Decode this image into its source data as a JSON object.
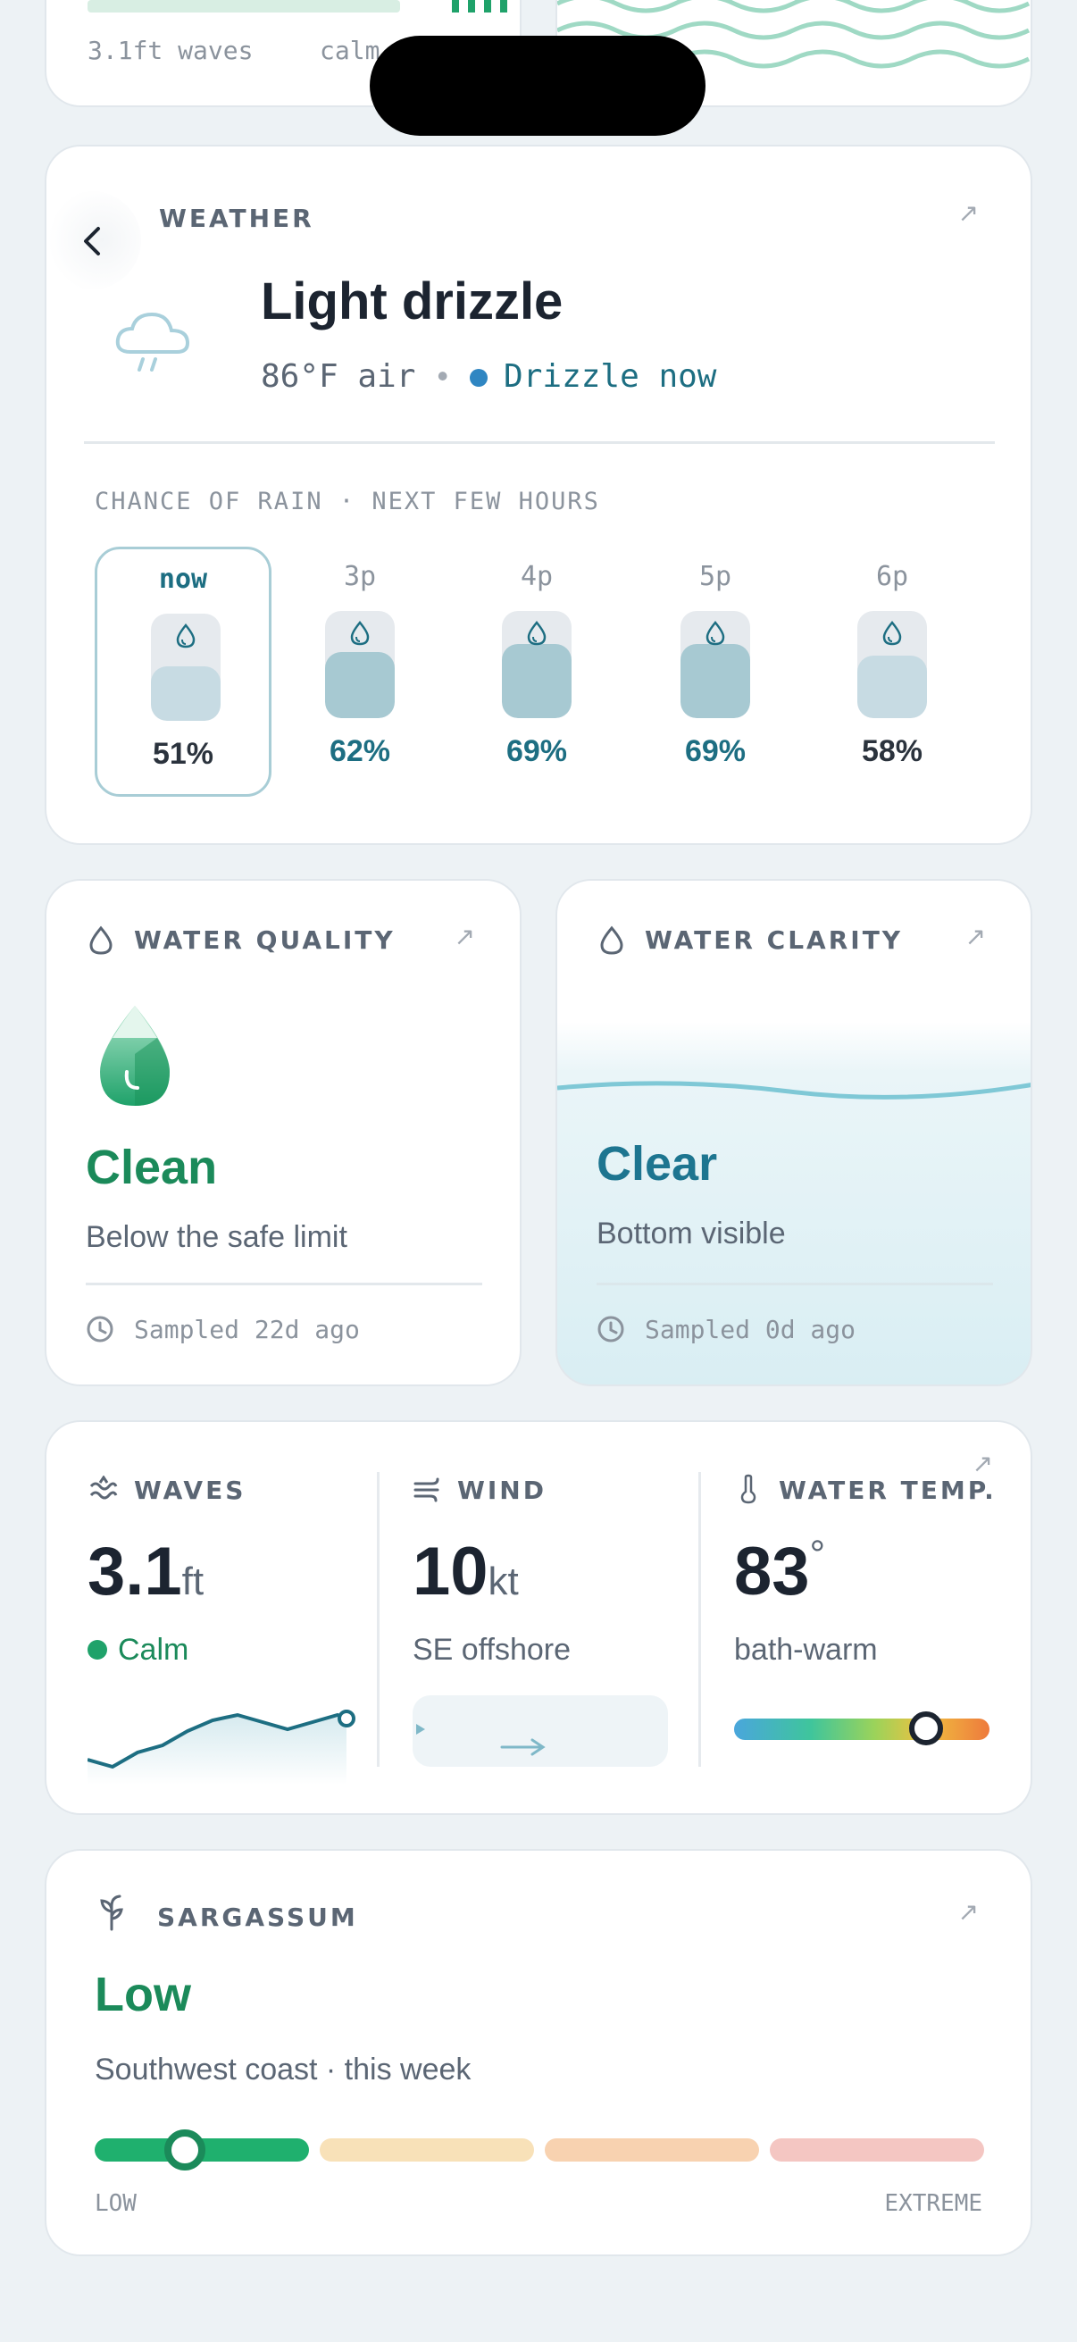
{
  "top_partial": {
    "left_caption_waves": "3.1ft waves",
    "left_caption_calm": "calm"
  },
  "weather": {
    "section_label": "WEATHER",
    "condition": "Light drizzle",
    "air_temp": "86°F air",
    "separator": "•",
    "status": "Drizzle now",
    "rain_heading": "CHANCE OF RAIN · NEXT FEW HOURS",
    "hours": [
      {
        "label": "now",
        "pct": "51%",
        "chance": 51
      },
      {
        "label": "3p",
        "pct": "62%",
        "chance": 62
      },
      {
        "label": "4p",
        "pct": "69%",
        "chance": 69
      },
      {
        "label": "5p",
        "pct": "69%",
        "chance": 69
      },
      {
        "label": "6p",
        "pct": "58%",
        "chance": 58
      }
    ]
  },
  "water_quality": {
    "label": "WATER QUALITY",
    "status": "Clean",
    "description": "Below the safe limit",
    "sampled": "Sampled 22d ago"
  },
  "water_clarity": {
    "label": "WATER CLARITY",
    "status": "Clear",
    "description": "Bottom visible",
    "sampled": "Sampled 0d ago"
  },
  "conditions": {
    "waves": {
      "label": "WAVES",
      "value": "3.1",
      "unit": "ft",
      "status": "Calm"
    },
    "wind": {
      "label": "WIND",
      "value": "10",
      "unit": "kt",
      "direction": "SE offshore"
    },
    "water_temp": {
      "label": "WATER TEMP.",
      "value": "83",
      "unit": "°",
      "description": "bath-warm",
      "level": 0.75
    }
  },
  "sargassum": {
    "label": "SARGASSUM",
    "level": "Low",
    "region": "Southwest coast · this week",
    "scale_low": "LOW",
    "scale_high": "EXTREME",
    "level_position": 0.42
  },
  "colors": {
    "accent_teal": "#1d6e82",
    "good_green": "#1b8a5a",
    "clarity_teal": "#1d7590"
  }
}
